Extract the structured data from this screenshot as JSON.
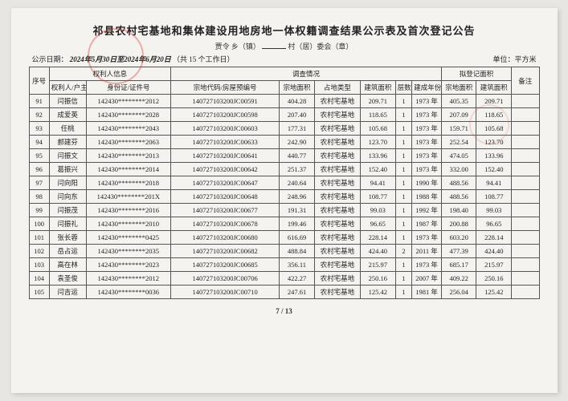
{
  "title": "祁县农村宅基地和集体建设用地房地一体权籍调查结果公示表及首次登记公告",
  "subtitle_prefix": "贾令",
  "subtitle_parts": [
    "乡（镇）",
    "村（居）委会（章）"
  ],
  "publish_label": "公示日期：",
  "publish_date_hand": "2024年5月30日至2024年6月20日",
  "publish_days": "（共 15 个工作日）",
  "unit_label": "单位：平方米",
  "footer": "7 / 13",
  "group_headers": {
    "seq": "序号",
    "rights": "权利人信息",
    "survey": "调查情况",
    "reg": "拟登记面积",
    "note": "备注"
  },
  "headers": {
    "owner": "权利人/户主",
    "id": "身份证/证件号",
    "parcel": "宗地代码/房屋预编号",
    "land_area": "宗地面积",
    "land_type": "占地类型",
    "build_area": "建筑面积",
    "floors": "层数",
    "year": "建成年份",
    "reg_land": "宗地面积",
    "reg_build": "建筑面积"
  },
  "land_type_value": "农村宅基地",
  "id_mask": "142430********",
  "parcel_prefix": "140727103200JC",
  "rows": [
    {
      "n": 91,
      "owner": "闫振信",
      "id4": "2012",
      "pcode": "00591",
      "a1": "404.28",
      "a2": "209.71",
      "f": 1,
      "y": "1973 年",
      "r1": "405.35",
      "r2": "209.71"
    },
    {
      "n": 92,
      "owner": "成爱英",
      "id4": "2028",
      "pcode": "00598",
      "a1": "207.40",
      "a2": "118.65",
      "f": 1,
      "y": "1973 年",
      "r1": "207.09",
      "r2": "118.65"
    },
    {
      "n": 93,
      "owner": "任桃",
      "id4": "2043",
      "pcode": "00603",
      "a1": "177.31",
      "a2": "105.68",
      "f": 1,
      "y": "1973 年",
      "r1": "159.71",
      "r2": "105.68"
    },
    {
      "n": 94,
      "owner": "郝建芬",
      "id4": "2063",
      "pcode": "00633",
      "a1": "242.90",
      "a2": "123.70",
      "f": 1,
      "y": "1973 年",
      "r1": "252.54",
      "r2": "123.70"
    },
    {
      "n": 95,
      "owner": "闫振文",
      "id4": "2013",
      "pcode": "00641",
      "a1": "440.77",
      "a2": "133.96",
      "f": 1,
      "y": "1973 年",
      "r1": "474.05",
      "r2": "133.96"
    },
    {
      "n": 96,
      "owner": "葛振兴",
      "id4": "2014",
      "pcode": "00642",
      "a1": "251.37",
      "a2": "152.40",
      "f": 1,
      "y": "1973 年",
      "r1": "332.00",
      "r2": "152.40"
    },
    {
      "n": 97,
      "owner": "闫向阳",
      "id4": "2018",
      "pcode": "00647",
      "a1": "240.64",
      "a2": "94.41",
      "f": 1,
      "y": "1990 年",
      "r1": "488.56",
      "r2": "94.41"
    },
    {
      "n": 98,
      "owner": "闫向东",
      "id4": "201X",
      "pcode": "00648",
      "a1": "248.96",
      "a2": "108.77",
      "f": 1,
      "y": "1988 年",
      "r1": "488.56",
      "r2": "108.77"
    },
    {
      "n": 99,
      "owner": "闫振茂",
      "id4": "2016",
      "pcode": "00677",
      "a1": "191.31",
      "a2": "99.03",
      "f": 1,
      "y": "1992 年",
      "r1": "198.40",
      "r2": "99.03"
    },
    {
      "n": 100,
      "owner": "闫振礼",
      "id4": "2010",
      "pcode": "00678",
      "a1": "199.46",
      "a2": "96.65",
      "f": 1,
      "y": "1987 年",
      "r1": "200.88",
      "r2": "96.65"
    },
    {
      "n": 101,
      "owner": "张长蓉",
      "id4": "0425",
      "pcode": "00680",
      "a1": "616.69",
      "a2": "228.14",
      "f": 1,
      "y": "1973 年",
      "r1": "603.20",
      "r2": "228.14"
    },
    {
      "n": 102,
      "owner": "岳占运",
      "id4": "2035",
      "pcode": "00682",
      "a1": "488.84",
      "a2": "424.40",
      "f": 2,
      "y": "2011 年",
      "r1": "477.39",
      "r2": "424.40"
    },
    {
      "n": 103,
      "owner": "高在林",
      "id4": "2023",
      "pcode": "00685",
      "a1": "356.11",
      "a2": "215.97",
      "f": 1,
      "y": "1973 年",
      "r1": "685.17",
      "r2": "215.97"
    },
    {
      "n": 104,
      "owner": "袁圣俊",
      "id4": "2012",
      "pcode": "00706",
      "a1": "422.27",
      "a2": "250.16",
      "f": 1,
      "y": "2007 年",
      "r1": "409.22",
      "r2": "250.16"
    },
    {
      "n": 105,
      "owner": "闫吉运",
      "id4": "0036",
      "pcode": "00710",
      "a1": "247.61",
      "a2": "125.42",
      "f": 1,
      "y": "1981 年",
      "r1": "256.04",
      "r2": "125.42"
    }
  ]
}
